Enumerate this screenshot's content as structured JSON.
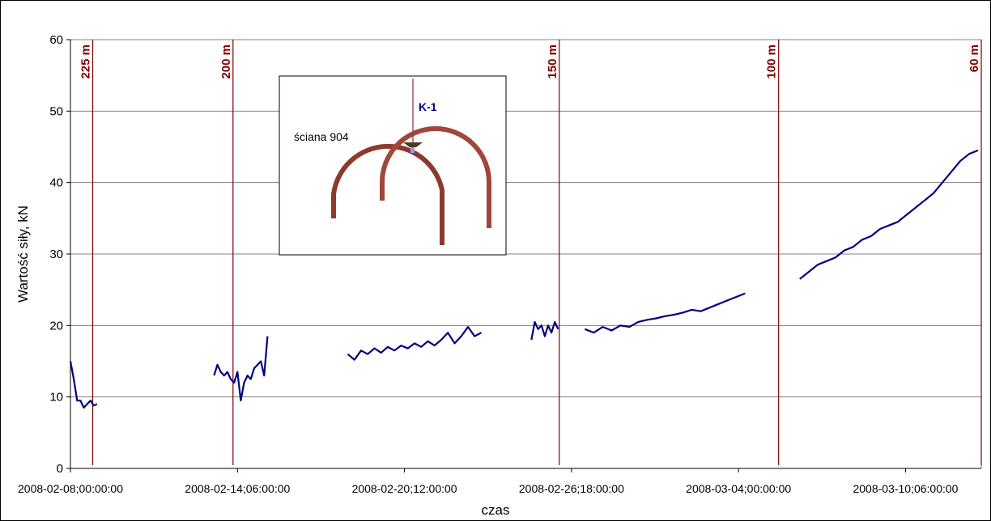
{
  "chart_data": {
    "type": "line",
    "x_label": "czas",
    "y_label": "Wartość siły, kN",
    "x": [
      "2008-02-08;00:00:00",
      "2008-02-08;03:00:00",
      "2008-02-08;06:00:00",
      "2008-02-08;09:00:00",
      "2008-02-08;12:00:00",
      "2008-02-08;15:00:00",
      "2008-02-08;18:00:00",
      "2008-02-08;21:00:00",
      "2008-02-09;00:00:00",
      "2008-02-11;00:00:00",
      "2008-02-13;09:00:00",
      "2008-02-13;12:00:00",
      "2008-02-13;15:00:00",
      "2008-02-13;18:00:00",
      "2008-02-13;21:00:00",
      "2008-02-14;00:00:00",
      "2008-02-14;03:00:00",
      "2008-02-14;06:00:00",
      "2008-02-14;09:00:00",
      "2008-02-14;12:00:00",
      "2008-02-14;15:00:00",
      "2008-02-14;18:00:00",
      "2008-02-14;21:00:00",
      "2008-02-15;00:00:00",
      "2008-02-15;03:00:00",
      "2008-02-15;06:00:00",
      "2008-02-15;09:00:00",
      "2008-02-17;00:00:00",
      "2008-02-18;09:00:00",
      "2008-02-18;15:00:00",
      "2008-02-18;21:00:00",
      "2008-02-19;03:00:00",
      "2008-02-19;09:00:00",
      "2008-02-19;15:00:00",
      "2008-02-19;21:00:00",
      "2008-02-20;03:00:00",
      "2008-02-20;09:00:00",
      "2008-02-20;15:00:00",
      "2008-02-20;21:00:00",
      "2008-02-21;03:00:00",
      "2008-02-21;09:00:00",
      "2008-02-21;15:00:00",
      "2008-02-21;21:00:00",
      "2008-02-22;03:00:00",
      "2008-02-22;09:00:00",
      "2008-02-22;15:00:00",
      "2008-02-22;21:00:00",
      "2008-02-23;03:00:00",
      "2008-02-23;09:00:00",
      "2008-02-24;12:00:00",
      "2008-02-25;06:00:00",
      "2008-02-25;09:00:00",
      "2008-02-25;12:00:00",
      "2008-02-25;15:00:00",
      "2008-02-25;18:00:00",
      "2008-02-25;21:00:00",
      "2008-02-26;00:00:00",
      "2008-02-26;03:00:00",
      "2008-02-26;06:00:00",
      "2008-02-26;18:00:00",
      "2008-02-27;06:00:00",
      "2008-02-27;14:00:00",
      "2008-02-27;22:00:00",
      "2008-02-28;06:00:00",
      "2008-02-28;14:00:00",
      "2008-02-28;22:00:00",
      "2008-02-29;06:00:00",
      "2008-02-29;14:00:00",
      "2008-02-29;22:00:00",
      "2008-03-01;06:00:00",
      "2008-03-01;14:00:00",
      "2008-03-01;22:00:00",
      "2008-03-02;06:00:00",
      "2008-03-02;14:00:00",
      "2008-03-02;22:00:00",
      "2008-03-03;06:00:00",
      "2008-03-03;14:00:00",
      "2008-03-03;22:00:00",
      "2008-03-04;06:00:00",
      "2008-03-05;06:00:00",
      "2008-03-06;07:00:00",
      "2008-03-06;15:00:00",
      "2008-03-06;23:00:00",
      "2008-03-07;07:00:00",
      "2008-03-07;15:00:00",
      "2008-03-07;23:00:00",
      "2008-03-08;07:00:00",
      "2008-03-08;15:00:00",
      "2008-03-08;23:00:00",
      "2008-03-09;07:00:00",
      "2008-03-09;15:00:00",
      "2008-03-09;23:00:00",
      "2008-03-10;07:00:00",
      "2008-03-10;15:00:00",
      "2008-03-10;23:00:00",
      "2008-03-11;07:00:00",
      "2008-03-11;15:00:00",
      "2008-03-11;23:00:00",
      "2008-03-12;07:00:00",
      "2008-03-12;15:00:00",
      "2008-03-12;23:00:00"
    ],
    "series": [
      {
        "color": "#000080",
        "values": [
          15,
          12.5,
          9.5,
          9.5,
          8.5,
          9,
          9.5,
          8.8,
          9,
          null,
          13,
          14.5,
          13.5,
          13,
          13.5,
          12.5,
          12,
          13.5,
          9.5,
          12,
          13,
          12.5,
          14,
          14.5,
          15,
          13,
          18.5,
          null,
          16,
          15.2,
          16.5,
          16,
          16.8,
          16.2,
          17,
          16.5,
          17.2,
          16.8,
          17.5,
          17,
          17.8,
          17.2,
          18,
          19,
          17.5,
          18.5,
          19.8,
          18.5,
          19,
          null,
          18,
          20.5,
          19.5,
          20,
          18.5,
          20,
          19,
          20.5,
          19.5,
          null,
          19.5,
          19,
          19.8,
          19.3,
          20,
          19.8,
          20.5,
          20.8,
          21,
          21.3,
          21.5,
          21.8,
          22.2,
          22,
          22.5,
          23,
          23.5,
          24,
          24.5,
          null,
          26.5,
          27.5,
          28.5,
          29,
          29.5,
          30.5,
          31,
          32,
          32.5,
          33.5,
          34,
          34.5,
          35.5,
          36.5,
          37.5,
          38.5,
          40,
          41.5,
          43,
          44,
          44.5
        ]
      }
    ],
    "xlim": [
      "2008-02-08;00:00:00",
      "2008-03-13;02:00:00"
    ],
    "xticks": [
      "2008-02-08;00:00:00",
      "2008-02-14;06:00:00",
      "2008-02-20;12:00:00",
      "2008-02-26;18:00:00",
      "2008-03-04;00:00:00",
      "2008-03-10;06:00:00"
    ],
    "ylim": [
      0,
      60
    ],
    "yticks": [
      0,
      10,
      20,
      30,
      40,
      50,
      60
    ],
    "grid": true,
    "marker_color": "#800000",
    "markers": [
      {
        "x": "2008-02-08;20:00:00",
        "label": "225 m"
      },
      {
        "x": "2008-02-14;02:00:00",
        "label": "200 m"
      },
      {
        "x": "2008-02-26;07:00:00",
        "label": "150 m"
      },
      {
        "x": "2008-03-05;12:00:00",
        "label": "100 m"
      },
      {
        "x": "2008-03-13;02:00:00",
        "label": "60 m"
      }
    ],
    "inset": {
      "probe_label": "K-1",
      "wall_label": "ściana 904"
    }
  }
}
